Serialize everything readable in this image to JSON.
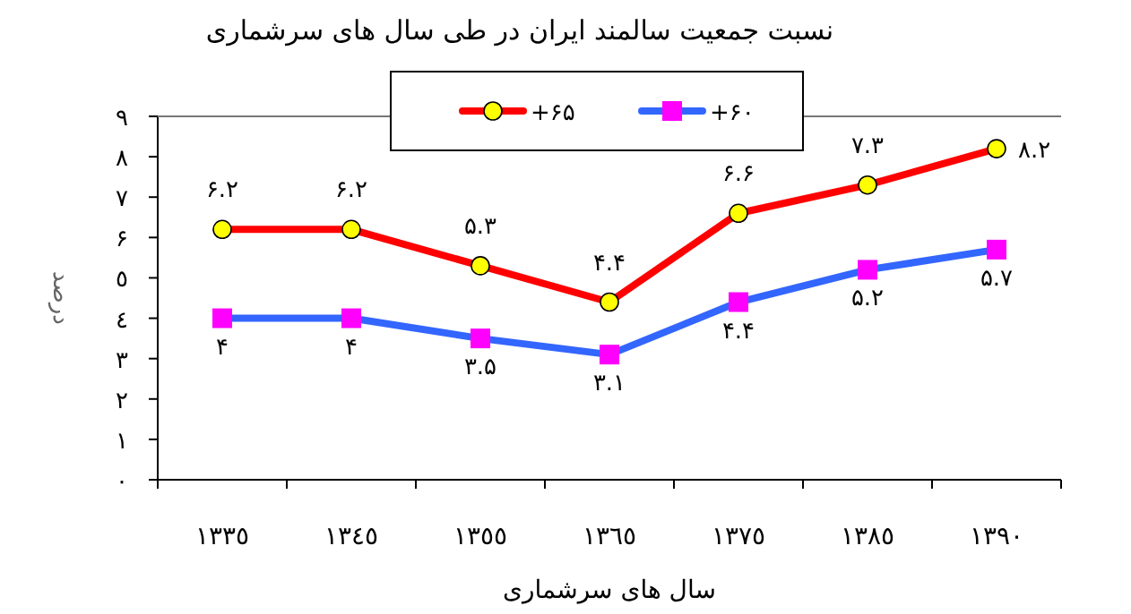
{
  "chart_data": {
    "type": "line",
    "title": "نسبت جمعیت سالمند ایران در طی سال های سرشماری",
    "xlabel": "سال های سرشماری",
    "ylabel": "درصد",
    "categories": [
      "١٣٣٥",
      "١٣٤٥",
      "١٣٥٥",
      "١٣٦٥",
      "١٣٧٥",
      "١٣٨٥",
      "١٣٩٠"
    ],
    "ylim": [
      0,
      9
    ],
    "yticks": [
      {
        "value": 0,
        "label": "٠"
      },
      {
        "value": 1,
        "label": "١"
      },
      {
        "value": 2,
        "label": "٢"
      },
      {
        "value": 3,
        "label": "٣"
      },
      {
        "value": 4,
        "label": "٤"
      },
      {
        "value": 5,
        "label": "٥"
      },
      {
        "value": 6,
        "label": "۶"
      },
      {
        "value": 7,
        "label": "٧"
      },
      {
        "value": 8,
        "label": "٨"
      },
      {
        "value": 9,
        "label": "٩"
      }
    ],
    "grid": false,
    "legend": "top",
    "series": [
      {
        "name": "+۶۵",
        "color": "#ff0000",
        "colors": [
          "#ffff00",
          "#ffff00",
          "#ffff00",
          "#ffff00",
          "#ffff00",
          "#ffff00",
          "#ffff00"
        ],
        "marker": "circle",
        "values": [
          6.2,
          6.2,
          5.3,
          4.4,
          6.6,
          7.3,
          8.2
        ],
        "value_labels": [
          "۶.۲",
          "۶.۲",
          "۵.۳",
          "۴.۴",
          "۶.۶",
          "۷.۳",
          "۸.۲"
        ]
      },
      {
        "name": "+۶۰",
        "color": "#3366ff",
        "colors": [
          "#ff00ff",
          "#ff00ff",
          "#ff00ff",
          "#ff00ff",
          "#ff00ff",
          "#ff00ff",
          "#ff00ff"
        ],
        "marker": "square",
        "values": [
          4,
          4,
          3.5,
          3.1,
          4.4,
          5.2,
          5.7
        ],
        "value_labels": [
          "۴",
          "۴",
          "۳.۵",
          "۳.۱",
          "۴.۴",
          "۵.۲",
          "۵.۷"
        ]
      }
    ]
  }
}
